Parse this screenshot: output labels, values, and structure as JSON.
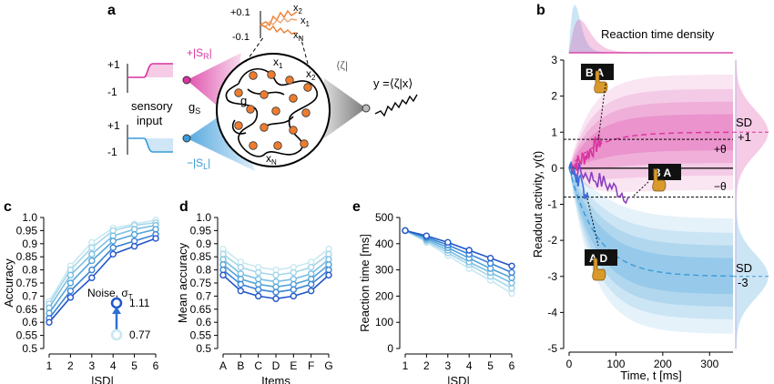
{
  "panels": {
    "a": "a",
    "b": "b",
    "c": "c",
    "d": "d",
    "e": "e"
  },
  "schematic": {
    "plus_one": "+1",
    "minus_one": "-1",
    "sensory_input": [
      "sensory",
      "input"
    ],
    "pos_stim": "+|S",
    "pos_stim_sub": "R",
    "neg_stim": "−|S",
    "neg_stim_sub": "L",
    "gs": "g",
    "gs_sub": "S",
    "g": "g",
    "readout": "y =⟨ζ|x⟩",
    "zeta": "⟨ζ|",
    "inset_top": "+0.1",
    "inset_bottom": "-0.1",
    "x1": "x",
    "x1_sub": "1",
    "x2": "x",
    "x2_sub": "2",
    "xN": "x",
    "xN_sub": "N",
    "colors": {
      "magenta": "#d9339e",
      "blue": "#3a9ad9",
      "orange": "#ee7c2f",
      "gray": "#8c8c8c"
    }
  },
  "legend": {
    "noise_label": "Noise, σ",
    "noise_sub": "T",
    "noise_high": "1.11",
    "noise_low": "0.77"
  },
  "panel_b": {
    "density_title": "Reaction time density",
    "plus_theta": "+θ",
    "minus_theta": "−θ",
    "sd_top": [
      "SD",
      "+1"
    ],
    "sd_bottom": [
      "SD",
      "-3"
    ],
    "key_top": "B A",
    "key_mid": "B A",
    "key_bottom": "A D",
    "icon_names": [
      "key-pair-icon",
      "hand-press-icon"
    ]
  },
  "chart_data": [
    {
      "id": "c",
      "type": "line",
      "xlabel": "|SD|",
      "ylabel": "Accuracy",
      "x": [
        1,
        2,
        3,
        4,
        5,
        6
      ],
      "xlim": [
        1,
        6
      ],
      "ylim": [
        0.5,
        1.0
      ],
      "yticks": [
        0.5,
        0.55,
        0.6,
        0.65,
        0.7,
        0.75,
        0.8,
        0.85,
        0.9,
        0.95,
        1.0
      ],
      "yticklabels": [
        "0.5",
        "0.55",
        "0.6",
        "0.65",
        "0.7",
        "0.75",
        "0.8",
        "0.85",
        "0.9",
        "0.95",
        "1.0"
      ],
      "series": [
        {
          "noise": 1.11,
          "color": "#2256c9",
          "values": [
            0.6,
            0.695,
            0.77,
            0.86,
            0.89,
            0.92
          ]
        },
        {
          "noise": 1.02,
          "color": "#3a83d4",
          "values": [
            0.615,
            0.72,
            0.8,
            0.885,
            0.91,
            0.935
          ]
        },
        {
          "noise": 0.94,
          "color": "#54a4da",
          "values": [
            0.635,
            0.75,
            0.835,
            0.91,
            0.935,
            0.955
          ]
        },
        {
          "noise": 0.86,
          "color": "#7bbfe2",
          "values": [
            0.655,
            0.78,
            0.86,
            0.93,
            0.955,
            0.97
          ]
        },
        {
          "noise": 0.8,
          "color": "#a4d6ea",
          "values": [
            0.67,
            0.8,
            0.885,
            0.95,
            0.97,
            0.98
          ]
        },
        {
          "noise": 0.77,
          "color": "#c8e8f2",
          "values": [
            0.68,
            0.815,
            0.905,
            0.96,
            0.975,
            0.99
          ]
        }
      ]
    },
    {
      "id": "d",
      "type": "line",
      "xlabel": "Items",
      "ylabel": "Mean accuracy",
      "categories": [
        "A",
        "B",
        "C",
        "D",
        "E",
        "F",
        "G"
      ],
      "ylim": [
        0.5,
        1.0
      ],
      "yticks": [
        0.5,
        0.55,
        0.6,
        0.65,
        0.7,
        0.75,
        0.8,
        0.85,
        0.9,
        0.95,
        1.0
      ],
      "yticklabels": [
        "0.5",
        "0.55",
        "0.6",
        "0.65",
        "0.7",
        "0.75",
        "0.8",
        "0.85",
        "0.9",
        "0.95",
        "1.0"
      ],
      "series": [
        {
          "noise": 1.11,
          "color": "#2256c9",
          "values": [
            0.78,
            0.72,
            0.7,
            0.69,
            0.7,
            0.72,
            0.78
          ]
        },
        {
          "noise": 1.02,
          "color": "#3a83d4",
          "values": [
            0.8,
            0.745,
            0.725,
            0.715,
            0.725,
            0.745,
            0.8
          ]
        },
        {
          "noise": 0.94,
          "color": "#54a4da",
          "values": [
            0.82,
            0.765,
            0.745,
            0.735,
            0.745,
            0.765,
            0.82
          ]
        },
        {
          "noise": 0.86,
          "color": "#7bbfe2",
          "values": [
            0.84,
            0.785,
            0.765,
            0.755,
            0.765,
            0.785,
            0.84
          ]
        },
        {
          "noise": 0.8,
          "color": "#a4d6ea",
          "values": [
            0.86,
            0.81,
            0.79,
            0.78,
            0.79,
            0.81,
            0.86
          ]
        },
        {
          "noise": 0.77,
          "color": "#c8e8f2",
          "values": [
            0.88,
            0.83,
            0.81,
            0.8,
            0.81,
            0.83,
            0.88
          ]
        }
      ]
    },
    {
      "id": "e",
      "type": "line",
      "xlabel": "|SD|",
      "ylabel": "Reaction time [ms]",
      "x": [
        1,
        2,
        3,
        4,
        5,
        6
      ],
      "xlim": [
        1,
        6
      ],
      "ylim": [
        0,
        500
      ],
      "yticks": [
        0,
        100,
        200,
        300,
        400,
        500
      ],
      "yticklabels": [
        "0",
        "100",
        "200",
        "300",
        "400",
        "500"
      ],
      "series": [
        {
          "noise": 1.11,
          "color": "#2256c9",
          "values": [
            450,
            430,
            405,
            375,
            345,
            315
          ]
        },
        {
          "noise": 1.02,
          "color": "#3a83d4",
          "values": [
            450,
            425,
            395,
            360,
            325,
            290
          ]
        },
        {
          "noise": 0.94,
          "color": "#54a4da",
          "values": [
            450,
            420,
            385,
            345,
            305,
            270
          ]
        },
        {
          "noise": 0.86,
          "color": "#7bbfe2",
          "values": [
            450,
            415,
            375,
            330,
            290,
            250
          ]
        },
        {
          "noise": 0.8,
          "color": "#a4d6ea",
          "values": [
            450,
            410,
            365,
            320,
            275,
            230
          ]
        },
        {
          "noise": 0.77,
          "color": "#c8e8f2",
          "values": [
            450,
            405,
            355,
            305,
            260,
            210
          ]
        }
      ]
    },
    {
      "id": "b",
      "type": "area",
      "xlabel": "Time, t [ms]",
      "ylabel": "Readout activity, y(t)",
      "xlim": [
        0,
        350
      ],
      "ylim": [
        -5,
        3
      ],
      "xticks": [
        0,
        100,
        200,
        300
      ],
      "xticklabels": [
        "0",
        "100",
        "200",
        "300"
      ],
      "yticks": [
        -5,
        -4,
        -3,
        -2,
        -1,
        0,
        1,
        2,
        3
      ],
      "yticklabels": [
        "-5",
        "-4",
        "-3",
        "-2",
        "-1",
        "0",
        "1",
        "2",
        "3"
      ],
      "thresholds": [
        0.8,
        -0.8
      ],
      "series": [
        {
          "name": "SD +1",
          "color": "#d9339e",
          "asymptote": 1.0,
          "tau_ms": 60
        },
        {
          "name": "SD -3",
          "color": "#3a9ad9",
          "asymptote": -3.0,
          "tau_ms": 60
        }
      ],
      "trajectories": [
        {
          "color": "#d9339e",
          "end_ms": 70,
          "end_y": 0.8
        },
        {
          "color": "#8b3fbf",
          "end_ms": 130,
          "end_y": -0.8
        },
        {
          "color": "#3a6fd9",
          "end_ms": 40,
          "end_y": -0.8
        }
      ]
    }
  ]
}
